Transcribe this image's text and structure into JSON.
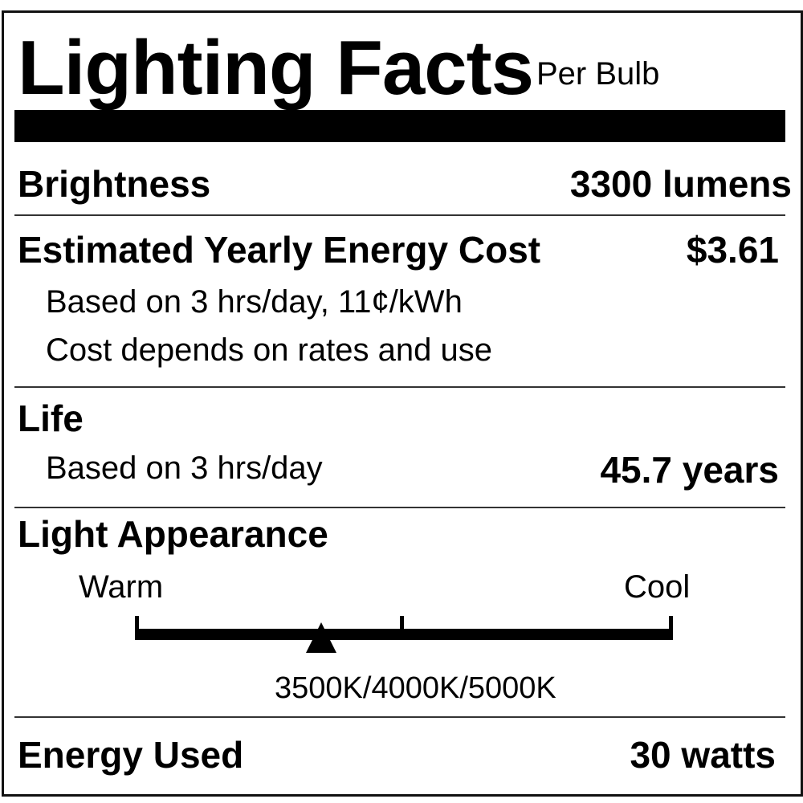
{
  "title": "Lighting Facts",
  "subtitle": "Per Bulb",
  "brightness": {
    "label": "Brightness",
    "value": "3300 lumens"
  },
  "energy_cost": {
    "label": "Estimated Yearly Energy Cost",
    "value": "$3.61",
    "note1": "Based on 3 hrs/day, 11¢/kWh",
    "note2": "Cost depends on rates and use"
  },
  "life": {
    "label": "Life",
    "note": "Based on 3 hrs/day",
    "value": "45.7 years"
  },
  "light_appearance": {
    "label": "Light Appearance",
    "warm_label": "Warm",
    "cool_label": "Cool",
    "marker_position_fraction": 0.347,
    "value": "3500K/4000K/5000K"
  },
  "energy_used": {
    "label": "Energy Used",
    "value": "30 watts"
  }
}
